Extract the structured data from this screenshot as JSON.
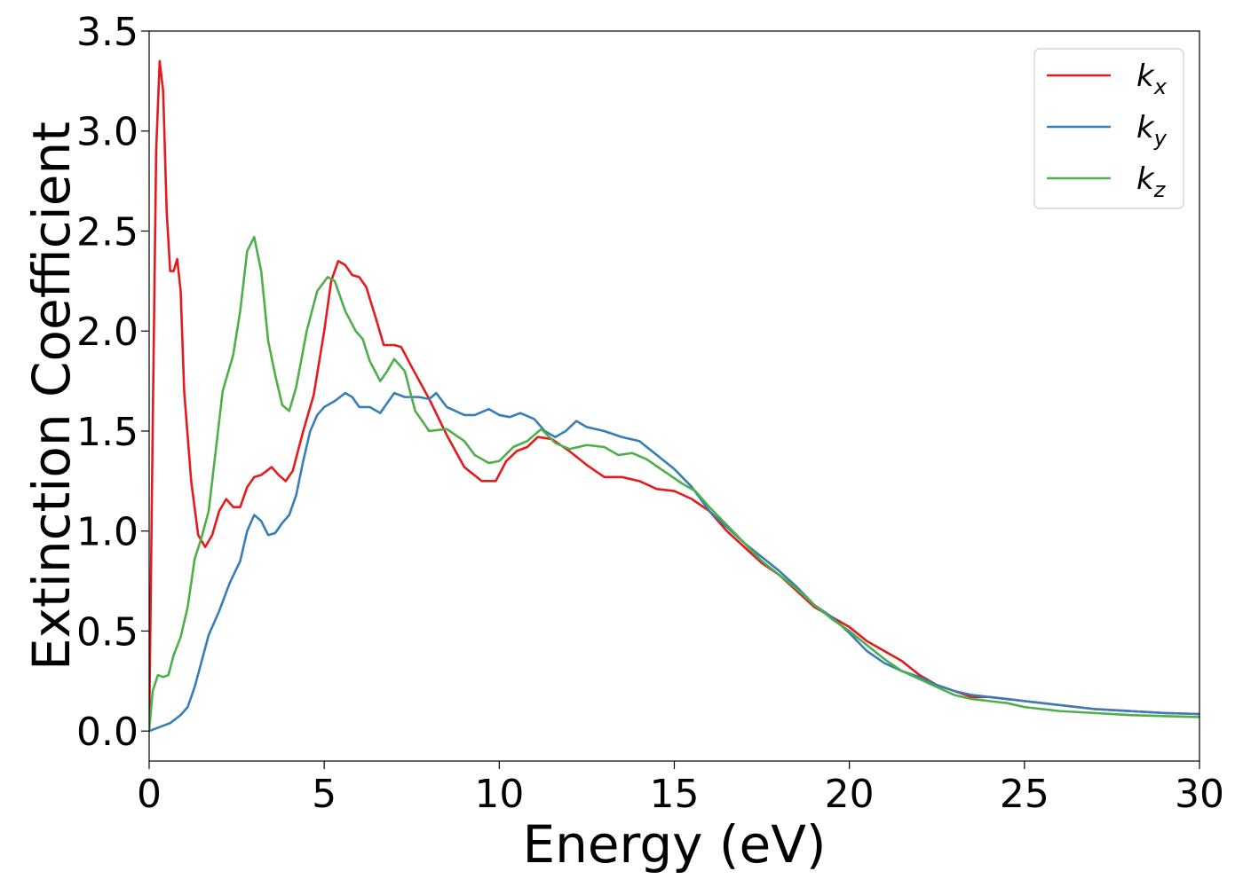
{
  "chart_data": {
    "type": "line",
    "xlabel": "Energy (eV)",
    "ylabel": "Extinction Coefficient",
    "xlim": [
      0,
      30
    ],
    "ylim": [
      -0.15,
      3.5
    ],
    "xticks": [
      0,
      5,
      10,
      15,
      20,
      25,
      30
    ],
    "yticks": [
      0.0,
      0.5,
      1.0,
      1.5,
      2.0,
      2.5,
      3.0,
      3.5
    ],
    "grid": false,
    "legend_position": "top-right",
    "series": [
      {
        "name": "k",
        "subscript": "x",
        "color": "#e41a1c",
        "points": [
          [
            0,
            0
          ],
          [
            0.1,
            1.5
          ],
          [
            0.2,
            2.9
          ],
          [
            0.3,
            3.35
          ],
          [
            0.4,
            3.2
          ],
          [
            0.5,
            2.6
          ],
          [
            0.6,
            2.3
          ],
          [
            0.7,
            2.3
          ],
          [
            0.8,
            2.36
          ],
          [
            0.9,
            2.2
          ],
          [
            1.0,
            1.7
          ],
          [
            1.2,
            1.25
          ],
          [
            1.4,
            0.98
          ],
          [
            1.6,
            0.92
          ],
          [
            1.8,
            0.98
          ],
          [
            2.0,
            1.1
          ],
          [
            2.2,
            1.16
          ],
          [
            2.4,
            1.12
          ],
          [
            2.6,
            1.12
          ],
          [
            2.8,
            1.22
          ],
          [
            3.0,
            1.27
          ],
          [
            3.2,
            1.28
          ],
          [
            3.5,
            1.32
          ],
          [
            3.7,
            1.28
          ],
          [
            3.9,
            1.25
          ],
          [
            4.1,
            1.3
          ],
          [
            4.4,
            1.5
          ],
          [
            4.7,
            1.68
          ],
          [
            5.0,
            2.0
          ],
          [
            5.2,
            2.25
          ],
          [
            5.4,
            2.35
          ],
          [
            5.6,
            2.33
          ],
          [
            5.8,
            2.28
          ],
          [
            6.0,
            2.27
          ],
          [
            6.2,
            2.22
          ],
          [
            6.5,
            2.05
          ],
          [
            6.7,
            1.93
          ],
          [
            7.0,
            1.93
          ],
          [
            7.2,
            1.92
          ],
          [
            7.5,
            1.82
          ],
          [
            8.0,
            1.66
          ],
          [
            8.5,
            1.48
          ],
          [
            9.0,
            1.32
          ],
          [
            9.5,
            1.25
          ],
          [
            9.9,
            1.25
          ],
          [
            10.2,
            1.35
          ],
          [
            10.5,
            1.4
          ],
          [
            10.8,
            1.42
          ],
          [
            11.1,
            1.47
          ],
          [
            11.5,
            1.46
          ],
          [
            12.0,
            1.4
          ],
          [
            12.5,
            1.33
          ],
          [
            13.0,
            1.27
          ],
          [
            13.5,
            1.27
          ],
          [
            14.0,
            1.25
          ],
          [
            14.5,
            1.21
          ],
          [
            15.0,
            1.2
          ],
          [
            15.5,
            1.16
          ],
          [
            16.0,
            1.1
          ],
          [
            16.5,
            1.0
          ],
          [
            17.0,
            0.92
          ],
          [
            17.5,
            0.84
          ],
          [
            18.0,
            0.78
          ],
          [
            18.5,
            0.7
          ],
          [
            19.0,
            0.62
          ],
          [
            19.5,
            0.57
          ],
          [
            20.0,
            0.52
          ],
          [
            20.5,
            0.45
          ],
          [
            21.0,
            0.4
          ],
          [
            21.5,
            0.35
          ],
          [
            22.0,
            0.28
          ],
          [
            22.5,
            0.23
          ],
          [
            23.0,
            0.2
          ],
          [
            23.5,
            0.17
          ],
          [
            24.0,
            0.17
          ],
          [
            24.5,
            0.16
          ],
          [
            25.0,
            0.15
          ],
          [
            25.5,
            0.14
          ],
          [
            26.0,
            0.13
          ],
          [
            26.5,
            0.12
          ],
          [
            27.0,
            0.11
          ],
          [
            28.0,
            0.1
          ],
          [
            29.0,
            0.09
          ],
          [
            30.0,
            0.085
          ]
        ]
      },
      {
        "name": "k",
        "subscript": "y",
        "color": "#377eb8",
        "points": [
          [
            0,
            0
          ],
          [
            0.3,
            0.02
          ],
          [
            0.6,
            0.04
          ],
          [
            0.9,
            0.08
          ],
          [
            1.1,
            0.12
          ],
          [
            1.3,
            0.22
          ],
          [
            1.5,
            0.35
          ],
          [
            1.7,
            0.48
          ],
          [
            2.0,
            0.6
          ],
          [
            2.3,
            0.74
          ],
          [
            2.6,
            0.85
          ],
          [
            2.8,
            1.0
          ],
          [
            3.0,
            1.08
          ],
          [
            3.2,
            1.05
          ],
          [
            3.4,
            0.98
          ],
          [
            3.6,
            0.99
          ],
          [
            3.8,
            1.04
          ],
          [
            4.0,
            1.08
          ],
          [
            4.2,
            1.18
          ],
          [
            4.4,
            1.35
          ],
          [
            4.6,
            1.5
          ],
          [
            4.8,
            1.58
          ],
          [
            5.0,
            1.62
          ],
          [
            5.3,
            1.65
          ],
          [
            5.6,
            1.69
          ],
          [
            5.8,
            1.67
          ],
          [
            6.0,
            1.62
          ],
          [
            6.3,
            1.62
          ],
          [
            6.6,
            1.59
          ],
          [
            7.0,
            1.69
          ],
          [
            7.3,
            1.67
          ],
          [
            7.7,
            1.67
          ],
          [
            8.0,
            1.66
          ],
          [
            8.2,
            1.69
          ],
          [
            8.5,
            1.62
          ],
          [
            9.0,
            1.58
          ],
          [
            9.3,
            1.58
          ],
          [
            9.7,
            1.61
          ],
          [
            10.0,
            1.58
          ],
          [
            10.3,
            1.57
          ],
          [
            10.6,
            1.59
          ],
          [
            11.0,
            1.56
          ],
          [
            11.3,
            1.5
          ],
          [
            11.6,
            1.47
          ],
          [
            11.9,
            1.5
          ],
          [
            12.2,
            1.55
          ],
          [
            12.5,
            1.52
          ],
          [
            13.0,
            1.5
          ],
          [
            13.5,
            1.47
          ],
          [
            14.0,
            1.45
          ],
          [
            14.5,
            1.38
          ],
          [
            15.0,
            1.31
          ],
          [
            15.5,
            1.22
          ],
          [
            16.0,
            1.1
          ],
          [
            16.5,
            1.02
          ],
          [
            17.0,
            0.94
          ],
          [
            17.5,
            0.87
          ],
          [
            18.0,
            0.8
          ],
          [
            18.5,
            0.72
          ],
          [
            19.0,
            0.63
          ],
          [
            19.5,
            0.57
          ],
          [
            20.0,
            0.49
          ],
          [
            20.5,
            0.4
          ],
          [
            21.0,
            0.34
          ],
          [
            21.5,
            0.3
          ],
          [
            22.0,
            0.27
          ],
          [
            22.5,
            0.23
          ],
          [
            23.0,
            0.2
          ],
          [
            23.5,
            0.18
          ],
          [
            24.0,
            0.17
          ],
          [
            24.5,
            0.16
          ],
          [
            25.0,
            0.15
          ],
          [
            25.5,
            0.14
          ],
          [
            26.0,
            0.13
          ],
          [
            26.5,
            0.12
          ],
          [
            27.0,
            0.11
          ],
          [
            28.0,
            0.1
          ],
          [
            29.0,
            0.09
          ],
          [
            30.0,
            0.085
          ]
        ]
      },
      {
        "name": "k",
        "subscript": "z",
        "color": "#4daf4a",
        "points": [
          [
            0,
            0
          ],
          [
            0.1,
            0.2
          ],
          [
            0.25,
            0.28
          ],
          [
            0.4,
            0.27
          ],
          [
            0.55,
            0.28
          ],
          [
            0.7,
            0.38
          ],
          [
            0.9,
            0.47
          ],
          [
            1.1,
            0.62
          ],
          [
            1.3,
            0.86
          ],
          [
            1.5,
            0.97
          ],
          [
            1.7,
            1.1
          ],
          [
            1.9,
            1.4
          ],
          [
            2.1,
            1.7
          ],
          [
            2.4,
            1.88
          ],
          [
            2.6,
            2.1
          ],
          [
            2.8,
            2.4
          ],
          [
            3.0,
            2.47
          ],
          [
            3.2,
            2.3
          ],
          [
            3.4,
            1.95
          ],
          [
            3.6,
            1.78
          ],
          [
            3.8,
            1.63
          ],
          [
            4.0,
            1.6
          ],
          [
            4.2,
            1.72
          ],
          [
            4.5,
            2.0
          ],
          [
            4.8,
            2.2
          ],
          [
            5.1,
            2.27
          ],
          [
            5.3,
            2.25
          ],
          [
            5.6,
            2.1
          ],
          [
            5.9,
            2.0
          ],
          [
            6.1,
            1.96
          ],
          [
            6.3,
            1.85
          ],
          [
            6.6,
            1.75
          ],
          [
            6.8,
            1.8
          ],
          [
            7.0,
            1.86
          ],
          [
            7.3,
            1.8
          ],
          [
            7.6,
            1.6
          ],
          [
            8.0,
            1.5
          ],
          [
            8.5,
            1.51
          ],
          [
            9.0,
            1.45
          ],
          [
            9.3,
            1.38
          ],
          [
            9.7,
            1.34
          ],
          [
            10.0,
            1.35
          ],
          [
            10.4,
            1.42
          ],
          [
            10.8,
            1.45
          ],
          [
            11.2,
            1.51
          ],
          [
            11.6,
            1.44
          ],
          [
            12.0,
            1.41
          ],
          [
            12.5,
            1.43
          ],
          [
            13.0,
            1.42
          ],
          [
            13.4,
            1.38
          ],
          [
            13.8,
            1.39
          ],
          [
            14.2,
            1.36
          ],
          [
            14.7,
            1.3
          ],
          [
            15.2,
            1.24
          ],
          [
            15.6,
            1.2
          ],
          [
            16.0,
            1.12
          ],
          [
            16.5,
            1.03
          ],
          [
            17.0,
            0.94
          ],
          [
            17.5,
            0.85
          ],
          [
            18.0,
            0.78
          ],
          [
            18.5,
            0.71
          ],
          [
            19.0,
            0.63
          ],
          [
            19.5,
            0.56
          ],
          [
            20.0,
            0.5
          ],
          [
            20.5,
            0.43
          ],
          [
            21.0,
            0.36
          ],
          [
            21.5,
            0.3
          ],
          [
            22.0,
            0.26
          ],
          [
            22.5,
            0.22
          ],
          [
            23.0,
            0.18
          ],
          [
            23.5,
            0.16
          ],
          [
            24.0,
            0.15
          ],
          [
            24.5,
            0.14
          ],
          [
            25.0,
            0.12
          ],
          [
            25.5,
            0.11
          ],
          [
            26.0,
            0.1
          ],
          [
            27.0,
            0.09
          ],
          [
            28.0,
            0.08
          ],
          [
            29.0,
            0.075
          ],
          [
            30.0,
            0.07
          ]
        ]
      }
    ]
  }
}
